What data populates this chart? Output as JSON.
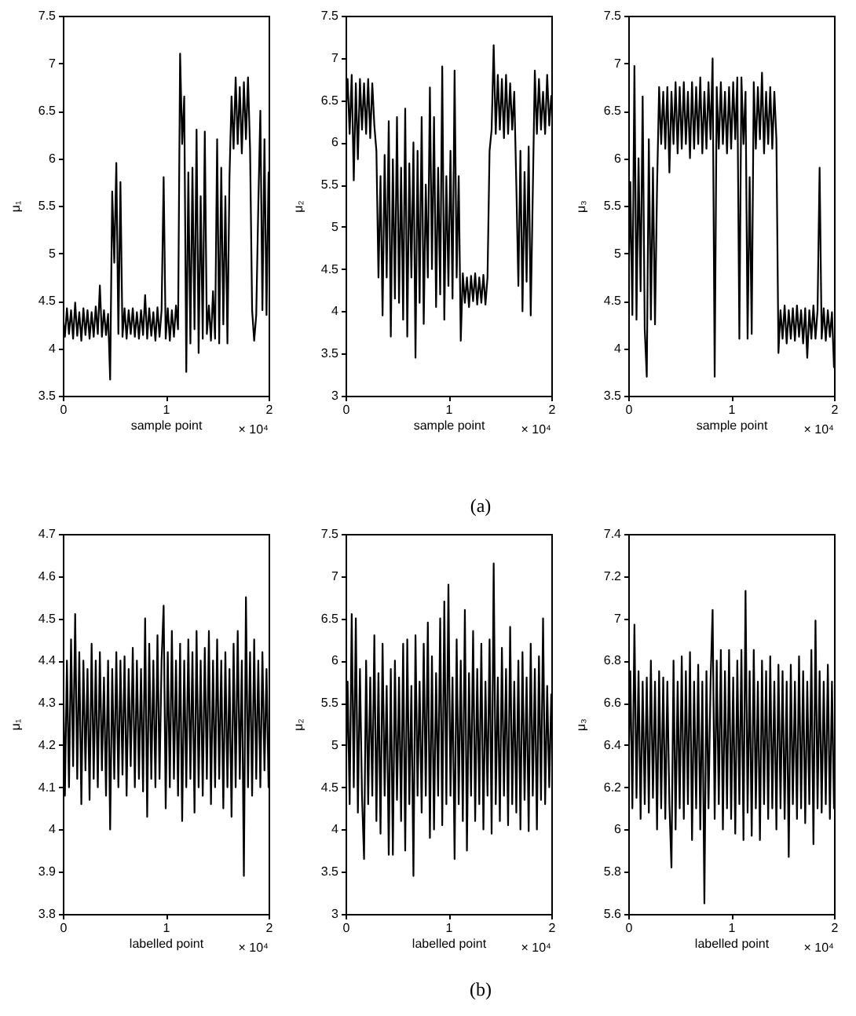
{
  "chart_data": [
    {
      "type": "line",
      "xlabel": "sample point",
      "ylabel": "μ₁",
      "annotations": [
        "× 10⁴"
      ],
      "xlim": [
        0,
        2
      ],
      "xticks": [
        0,
        1,
        2
      ],
      "ylim": [
        3.5,
        7.5
      ],
      "yticks": [
        3.5,
        4,
        4.5,
        5,
        5.5,
        6,
        6.5,
        7,
        7.5
      ],
      "x": [
        0,
        0.02,
        0.04,
        0.06,
        0.08,
        0.1,
        0.12,
        0.14,
        0.16,
        0.18,
        0.2,
        0.22,
        0.24,
        0.26,
        0.28,
        0.3,
        0.32,
        0.34,
        0.36,
        0.38,
        0.4,
        0.42,
        0.44,
        0.46,
        0.48,
        0.5,
        0.52,
        0.54,
        0.56,
        0.58,
        0.6,
        0.62,
        0.64,
        0.66,
        0.68,
        0.7,
        0.72,
        0.74,
        0.76,
        0.78,
        0.8,
        0.82,
        0.84,
        0.86,
        0.88,
        0.9,
        0.92,
        0.94,
        0.96,
        0.98,
        1,
        1.02,
        1.04,
        1.06,
        1.08,
        1.1,
        1.12,
        1.14,
        1.16,
        1.18,
        1.2,
        1.22,
        1.24,
        1.26,
        1.28,
        1.3,
        1.32,
        1.34,
        1.36,
        1.38,
        1.4,
        1.42,
        1.44,
        1.46,
        1.48,
        1.5,
        1.52,
        1.54,
        1.56,
        1.58,
        1.6,
        1.62,
        1.64,
        1.66,
        1.68,
        1.7,
        1.72,
        1.74,
        1.76,
        1.78,
        1.8,
        1.82,
        1.84,
        1.86,
        1.88,
        1.9,
        1.92,
        1.94,
        1.96,
        1.98,
        2
      ],
      "series": [
        {
          "color": "#000000",
          "values": [
            4.35,
            4.12,
            4.42,
            4.15,
            4.4,
            4.1,
            4.48,
            4.13,
            4.38,
            4.08,
            4.42,
            4.14,
            4.4,
            4.1,
            4.38,
            4.12,
            4.44,
            4.15,
            4.66,
            4.12,
            4.4,
            4.14,
            4.36,
            3.67,
            5.65,
            4.9,
            5.95,
            4.15,
            5.75,
            4.12,
            4.42,
            4.1,
            4.4,
            4.15,
            4.42,
            4.12,
            4.38,
            4.1,
            4.4,
            4.14,
            4.56,
            4.1,
            4.42,
            4.13,
            4.38,
            4.08,
            4.43,
            4.12,
            4.4,
            5.8,
            4.1,
            4.42,
            4.08,
            4.4,
            4.12,
            4.45,
            4.2,
            7.1,
            6.15,
            6.65,
            3.75,
            5.85,
            4.05,
            5.9,
            4.2,
            6.3,
            3.95,
            5.6,
            4.1,
            6.28,
            4.15,
            4.45,
            4.08,
            4.6,
            4.1,
            6.2,
            4.05,
            5.9,
            4.25,
            5.6,
            4.05,
            5.8,
            6.65,
            6.1,
            6.85,
            6.15,
            6.75,
            6.05,
            6.8,
            6.2,
            6.85,
            6.1,
            4.4,
            4.08,
            4.35,
            5.5,
            6.5,
            4.4,
            6.2,
            4.35,
            5.85
          ]
        }
      ]
    },
    {
      "type": "line",
      "xlabel": "sample point",
      "ylabel": "μ₂",
      "annotations": [
        "× 10⁴",
        "(a)"
      ],
      "xlim": [
        0,
        2
      ],
      "xticks": [
        0,
        1,
        2
      ],
      "ylim": [
        3,
        7.5
      ],
      "yticks": [
        3,
        3.5,
        4,
        4.5,
        5,
        5.5,
        6,
        6.5,
        7,
        7.5
      ],
      "x": [
        0,
        0.02,
        0.04,
        0.06,
        0.08,
        0.1,
        0.12,
        0.14,
        0.16,
        0.18,
        0.2,
        0.22,
        0.24,
        0.26,
        0.28,
        0.3,
        0.32,
        0.34,
        0.36,
        0.38,
        0.4,
        0.42,
        0.44,
        0.46,
        0.48,
        0.5,
        0.52,
        0.54,
        0.56,
        0.58,
        0.6,
        0.62,
        0.64,
        0.66,
        0.68,
        0.7,
        0.72,
        0.74,
        0.76,
        0.78,
        0.8,
        0.82,
        0.84,
        0.86,
        0.88,
        0.9,
        0.92,
        0.94,
        0.96,
        0.98,
        1,
        1.02,
        1.04,
        1.06,
        1.08,
        1.1,
        1.12,
        1.14,
        1.16,
        1.18,
        1.2,
        1.22,
        1.24,
        1.26,
        1.28,
        1.3,
        1.32,
        1.34,
        1.36,
        1.38,
        1.4,
        1.42,
        1.44,
        1.46,
        1.48,
        1.5,
        1.52,
        1.54,
        1.56,
        1.58,
        1.6,
        1.62,
        1.64,
        1.66,
        1.68,
        1.7,
        1.72,
        1.74,
        1.76,
        1.78,
        1.8,
        1.82,
        1.84,
        1.86,
        1.88,
        1.9,
        1.92,
        1.94,
        1.96,
        1.98,
        2
      ],
      "series": [
        {
          "color": "#000000",
          "values": [
            6.3,
            6.75,
            6.1,
            6.8,
            5.55,
            6.7,
            5.8,
            6.75,
            6.15,
            6.7,
            6.1,
            6.75,
            6.05,
            6.7,
            6.2,
            5.9,
            4.4,
            5.6,
            3.95,
            5.85,
            4.4,
            6.25,
            3.7,
            5.8,
            4.15,
            6.3,
            4.1,
            5.7,
            3.9,
            6.4,
            3.7,
            5.75,
            4.4,
            6.0,
            3.45,
            5.9,
            4.1,
            6.3,
            3.85,
            5.5,
            4.4,
            6.65,
            4.5,
            6.3,
            4.05,
            5.7,
            4.2,
            6.9,
            3.9,
            5.6,
            4.3,
            5.9,
            4.15,
            6.85,
            4.4,
            5.6,
            3.65,
            4.45,
            4.1,
            4.4,
            4.05,
            4.42,
            4.12,
            4.45,
            4.08,
            4.4,
            4.1,
            4.43,
            4.08,
            4.4,
            5.9,
            6.15,
            7.15,
            6.1,
            6.8,
            6.15,
            6.75,
            6.05,
            6.8,
            6.1,
            6.7,
            6.15,
            6.6,
            5.5,
            4.3,
            5.9,
            4.0,
            5.65,
            4.35,
            5.95,
            3.95,
            5.4,
            6.85,
            6.1,
            6.75,
            6.15,
            6.6,
            6.1,
            6.8,
            6.2,
            6.55
          ]
        }
      ]
    },
    {
      "type": "line",
      "xlabel": "sample point",
      "ylabel": "μ₃",
      "annotations": [
        "× 10⁴"
      ],
      "xlim": [
        0,
        2
      ],
      "xticks": [
        0,
        1,
        2
      ],
      "ylim": [
        3.5,
        7.5
      ],
      "yticks": [
        3.5,
        4,
        4.5,
        5,
        5.5,
        6,
        6.5,
        7,
        7.5
      ],
      "x": [
        0,
        0.02,
        0.04,
        0.06,
        0.08,
        0.1,
        0.12,
        0.14,
        0.16,
        0.18,
        0.2,
        0.22,
        0.24,
        0.26,
        0.28,
        0.3,
        0.32,
        0.34,
        0.36,
        0.38,
        0.4,
        0.42,
        0.44,
        0.46,
        0.48,
        0.5,
        0.52,
        0.54,
        0.56,
        0.58,
        0.6,
        0.62,
        0.64,
        0.66,
        0.68,
        0.7,
        0.72,
        0.74,
        0.76,
        0.78,
        0.8,
        0.82,
        0.84,
        0.86,
        0.88,
        0.9,
        0.92,
        0.94,
        0.96,
        0.98,
        1,
        1.02,
        1.04,
        1.06,
        1.08,
        1.1,
        1.12,
        1.14,
        1.16,
        1.18,
        1.2,
        1.22,
        1.24,
        1.26,
        1.28,
        1.3,
        1.32,
        1.34,
        1.36,
        1.38,
        1.4,
        1.42,
        1.44,
        1.46,
        1.48,
        1.5,
        1.52,
        1.54,
        1.56,
        1.58,
        1.6,
        1.62,
        1.64,
        1.66,
        1.68,
        1.7,
        1.72,
        1.74,
        1.76,
        1.78,
        1.8,
        1.82,
        1.84,
        1.86,
        1.88,
        1.9,
        1.92,
        1.94,
        1.96,
        1.98,
        2
      ],
      "series": [
        {
          "color": "#000000",
          "values": [
            4.4,
            5.75,
            4.35,
            6.97,
            4.3,
            6.0,
            4.6,
            6.65,
            4.2,
            3.7,
            6.2,
            4.3,
            5.9,
            4.25,
            5.7,
            6.75,
            6.15,
            6.7,
            6.1,
            6.75,
            5.85,
            6.7,
            6.15,
            6.8,
            6.05,
            6.75,
            6.1,
            6.8,
            6.15,
            6.7,
            6.0,
            6.8,
            6.1,
            6.75,
            6.15,
            6.85,
            6.05,
            6.7,
            6.1,
            6.8,
            6.2,
            7.05,
            3.7,
            6.75,
            6.1,
            6.8,
            6.15,
            6.7,
            6.05,
            6.75,
            6.1,
            6.8,
            6.2,
            6.85,
            4.1,
            6.85,
            6.15,
            6.7,
            4.1,
            5.8,
            4.15,
            6.8,
            6.1,
            6.75,
            6.2,
            6.9,
            6.05,
            6.7,
            6.15,
            6.75,
            6.1,
            6.7,
            6.2,
            3.95,
            4.4,
            4.1,
            4.45,
            4.05,
            4.4,
            4.1,
            4.42,
            4.08,
            4.45,
            4.12,
            4.4,
            4.05,
            4.42,
            3.9,
            4.4,
            4.1,
            4.45,
            4.1,
            4.4,
            5.9,
            4.1,
            4.42,
            4.08,
            4.4,
            4.12,
            4.38,
            3.8
          ]
        }
      ]
    },
    {
      "type": "line",
      "xlabel": "labelled point",
      "ylabel": "μ₁",
      "annotations": [
        "× 10⁴"
      ],
      "xlim": [
        0,
        2
      ],
      "xticks": [
        0,
        1,
        2
      ],
      "ylim": [
        3.8,
        4.7
      ],
      "yticks": [
        3.8,
        3.9,
        4,
        4.1,
        4.2,
        4.3,
        4.4,
        4.5,
        4.6,
        4.7
      ],
      "x": [
        0,
        0.02,
        0.04,
        0.06,
        0.08,
        0.1,
        0.12,
        0.14,
        0.16,
        0.18,
        0.2,
        0.22,
        0.24,
        0.26,
        0.28,
        0.3,
        0.32,
        0.34,
        0.36,
        0.38,
        0.4,
        0.42,
        0.44,
        0.46,
        0.48,
        0.5,
        0.52,
        0.54,
        0.56,
        0.58,
        0.6,
        0.62,
        0.64,
        0.66,
        0.68,
        0.7,
        0.72,
        0.74,
        0.76,
        0.78,
        0.8,
        0.82,
        0.84,
        0.86,
        0.88,
        0.9,
        0.92,
        0.94,
        0.96,
        0.98,
        1,
        1.02,
        1.04,
        1.06,
        1.08,
        1.1,
        1.12,
        1.14,
        1.16,
        1.18,
        1.2,
        1.22,
        1.24,
        1.26,
        1.28,
        1.3,
        1.32,
        1.34,
        1.36,
        1.38,
        1.4,
        1.42,
        1.44,
        1.46,
        1.48,
        1.5,
        1.52,
        1.54,
        1.56,
        1.58,
        1.6,
        1.62,
        1.64,
        1.66,
        1.68,
        1.7,
        1.72,
        1.74,
        1.76,
        1.78,
        1.8,
        1.82,
        1.84,
        1.86,
        1.88,
        1.9,
        1.92,
        1.94,
        1.96,
        1.98,
        2
      ],
      "series": [
        {
          "color": "#000000",
          "values": [
            4.42,
            4.08,
            4.4,
            4.1,
            4.45,
            4.15,
            4.51,
            4.12,
            4.42,
            4.06,
            4.4,
            4.14,
            4.38,
            4.07,
            4.44,
            4.12,
            4.4,
            4.1,
            4.42,
            4.14,
            4.36,
            4.08,
            4.4,
            4.0,
            4.38,
            4.12,
            4.42,
            4.1,
            4.4,
            4.13,
            4.41,
            4.08,
            4.38,
            4.15,
            4.43,
            4.1,
            4.4,
            4.12,
            4.38,
            4.09,
            4.5,
            4.03,
            4.44,
            4.12,
            4.4,
            4.1,
            4.46,
            4.12,
            4.4,
            4.53,
            4.05,
            4.42,
            4.1,
            4.47,
            4.12,
            4.4,
            4.08,
            4.44,
            4.02,
            4.4,
            4.1,
            4.45,
            4.12,
            4.42,
            4.04,
            4.47,
            4.1,
            4.4,
            4.08,
            4.43,
            4.12,
            4.47,
            4.06,
            4.4,
            4.1,
            4.45,
            4.12,
            4.4,
            4.05,
            4.42,
            4.1,
            4.38,
            4.03,
            4.44,
            4.1,
            4.47,
            4.12,
            4.4,
            3.89,
            4.55,
            4.1,
            4.42,
            4.08,
            4.45,
            4.12,
            4.4,
            4.1,
            4.42,
            4.14,
            4.38,
            4.1
          ]
        }
      ]
    },
    {
      "type": "line",
      "xlabel": "labelled point",
      "ylabel": "μ₂",
      "annotations": [
        "× 10⁴",
        "(b)"
      ],
      "xlim": [
        0,
        2
      ],
      "xticks": [
        0,
        1,
        2
      ],
      "ylim": [
        3,
        7.5
      ],
      "yticks": [
        3,
        3.5,
        4,
        4.5,
        5,
        5.5,
        6,
        6.5,
        7,
        7.5
      ],
      "x": [
        0,
        0.02,
        0.04,
        0.06,
        0.08,
        0.1,
        0.12,
        0.14,
        0.16,
        0.18,
        0.2,
        0.22,
        0.24,
        0.26,
        0.28,
        0.3,
        0.32,
        0.34,
        0.36,
        0.38,
        0.4,
        0.42,
        0.44,
        0.46,
        0.48,
        0.5,
        0.52,
        0.54,
        0.56,
        0.58,
        0.6,
        0.62,
        0.64,
        0.66,
        0.68,
        0.7,
        0.72,
        0.74,
        0.76,
        0.78,
        0.8,
        0.82,
        0.84,
        0.86,
        0.88,
        0.9,
        0.92,
        0.94,
        0.96,
        0.98,
        1,
        1.02,
        1.04,
        1.06,
        1.08,
        1.1,
        1.12,
        1.14,
        1.16,
        1.18,
        1.2,
        1.22,
        1.24,
        1.26,
        1.28,
        1.3,
        1.32,
        1.34,
        1.36,
        1.38,
        1.4,
        1.42,
        1.44,
        1.46,
        1.48,
        1.5,
        1.52,
        1.54,
        1.56,
        1.58,
        1.6,
        1.62,
        1.64,
        1.66,
        1.68,
        1.7,
        1.72,
        1.74,
        1.76,
        1.78,
        1.8,
        1.82,
        1.84,
        1.86,
        1.88,
        1.9,
        1.92,
        1.94,
        1.96,
        1.98,
        2
      ],
      "series": [
        {
          "color": "#000000",
          "values": [
            4.4,
            5.75,
            4.3,
            6.55,
            4.5,
            6.5,
            4.2,
            5.9,
            4.4,
            3.65,
            6.0,
            4.3,
            5.8,
            4.4,
            6.3,
            4.1,
            5.85,
            3.95,
            6.2,
            4.4,
            5.7,
            3.7,
            5.9,
            3.7,
            6.0,
            4.35,
            5.8,
            4.1,
            6.2,
            3.75,
            6.25,
            4.3,
            5.7,
            3.45,
            6.3,
            4.4,
            5.75,
            4.2,
            6.2,
            4.4,
            6.45,
            3.9,
            6.05,
            4.0,
            5.85,
            4.4,
            6.5,
            4.05,
            6.7,
            4.3,
            6.9,
            4.4,
            5.8,
            3.65,
            6.25,
            4.3,
            6.0,
            4.1,
            6.6,
            3.75,
            5.85,
            4.4,
            6.35,
            4.1,
            5.9,
            4.3,
            6.2,
            4.0,
            5.75,
            4.4,
            6.25,
            3.95,
            7.15,
            4.3,
            5.8,
            4.1,
            6.15,
            4.4,
            5.9,
            4.05,
            6.4,
            4.3,
            5.75,
            4.2,
            6.0,
            4.0,
            6.1,
            4.35,
            5.8,
            3.98,
            6.2,
            4.4,
            5.9,
            4.0,
            6.05,
            4.35,
            6.5,
            4.3,
            5.7,
            4.5,
            5.6
          ]
        }
      ]
    },
    {
      "type": "line",
      "xlabel": "labelled point",
      "ylabel": "μ₃",
      "annotations": [
        "× 10⁴"
      ],
      "xlim": [
        0,
        2
      ],
      "xticks": [
        0,
        1,
        2
      ],
      "ylim": [
        5.6,
        7.4
      ],
      "yticks": [
        5.6,
        5.8,
        6,
        6.2,
        6.4,
        6.6,
        6.8,
        7,
        7.2,
        7.4
      ],
      "x": [
        0,
        0.02,
        0.04,
        0.06,
        0.08,
        0.1,
        0.12,
        0.14,
        0.16,
        0.18,
        0.2,
        0.22,
        0.24,
        0.26,
        0.28,
        0.3,
        0.32,
        0.34,
        0.36,
        0.38,
        0.4,
        0.42,
        0.44,
        0.46,
        0.48,
        0.5,
        0.52,
        0.54,
        0.56,
        0.58,
        0.6,
        0.62,
        0.64,
        0.66,
        0.68,
        0.7,
        0.72,
        0.74,
        0.76,
        0.78,
        0.8,
        0.82,
        0.84,
        0.86,
        0.88,
        0.9,
        0.92,
        0.94,
        0.96,
        0.98,
        1,
        1.02,
        1.04,
        1.06,
        1.08,
        1.1,
        1.12,
        1.14,
        1.16,
        1.18,
        1.2,
        1.22,
        1.24,
        1.26,
        1.28,
        1.3,
        1.32,
        1.34,
        1.36,
        1.38,
        1.4,
        1.42,
        1.44,
        1.46,
        1.48,
        1.5,
        1.52,
        1.54,
        1.56,
        1.58,
        1.6,
        1.62,
        1.64,
        1.66,
        1.68,
        1.7,
        1.72,
        1.74,
        1.76,
        1.78,
        1.8,
        1.82,
        1.84,
        1.86,
        1.88,
        1.9,
        1.92,
        1.94,
        1.96,
        1.98,
        2
      ],
      "series": [
        {
          "color": "#000000",
          "values": [
            6.2,
            6.75,
            6.1,
            6.97,
            6.15,
            6.75,
            6.05,
            6.7,
            6.12,
            6.72,
            6.08,
            6.8,
            6.15,
            6.7,
            6.0,
            6.75,
            6.1,
            6.72,
            6.05,
            6.7,
            6.12,
            5.82,
            6.8,
            6.0,
            6.7,
            6.1,
            6.82,
            6.05,
            6.75,
            6.12,
            6.84,
            5.95,
            6.7,
            6.1,
            6.78,
            6.0,
            6.7,
            5.65,
            6.75,
            6.1,
            6.7,
            7.04,
            6.05,
            6.8,
            6.12,
            6.85,
            6.0,
            6.75,
            6.1,
            6.85,
            6.05,
            6.72,
            5.98,
            6.8,
            6.12,
            6.85,
            5.95,
            7.13,
            6.08,
            6.75,
            5.97,
            6.85,
            6.1,
            6.7,
            5.95,
            6.8,
            6.12,
            6.75,
            6.05,
            6.82,
            6.1,
            6.7,
            6.0,
            6.78,
            6.1,
            6.75,
            6.05,
            6.7,
            5.87,
            6.78,
            6.12,
            6.7,
            6.05,
            6.82,
            6.1,
            6.75,
            6.03,
            6.7,
            6.12,
            6.85,
            5.93,
            6.99,
            6.1,
            6.75,
            6.08,
            6.7,
            6.12,
            6.78,
            6.05,
            6.7,
            6.1
          ]
        }
      ]
    }
  ]
}
